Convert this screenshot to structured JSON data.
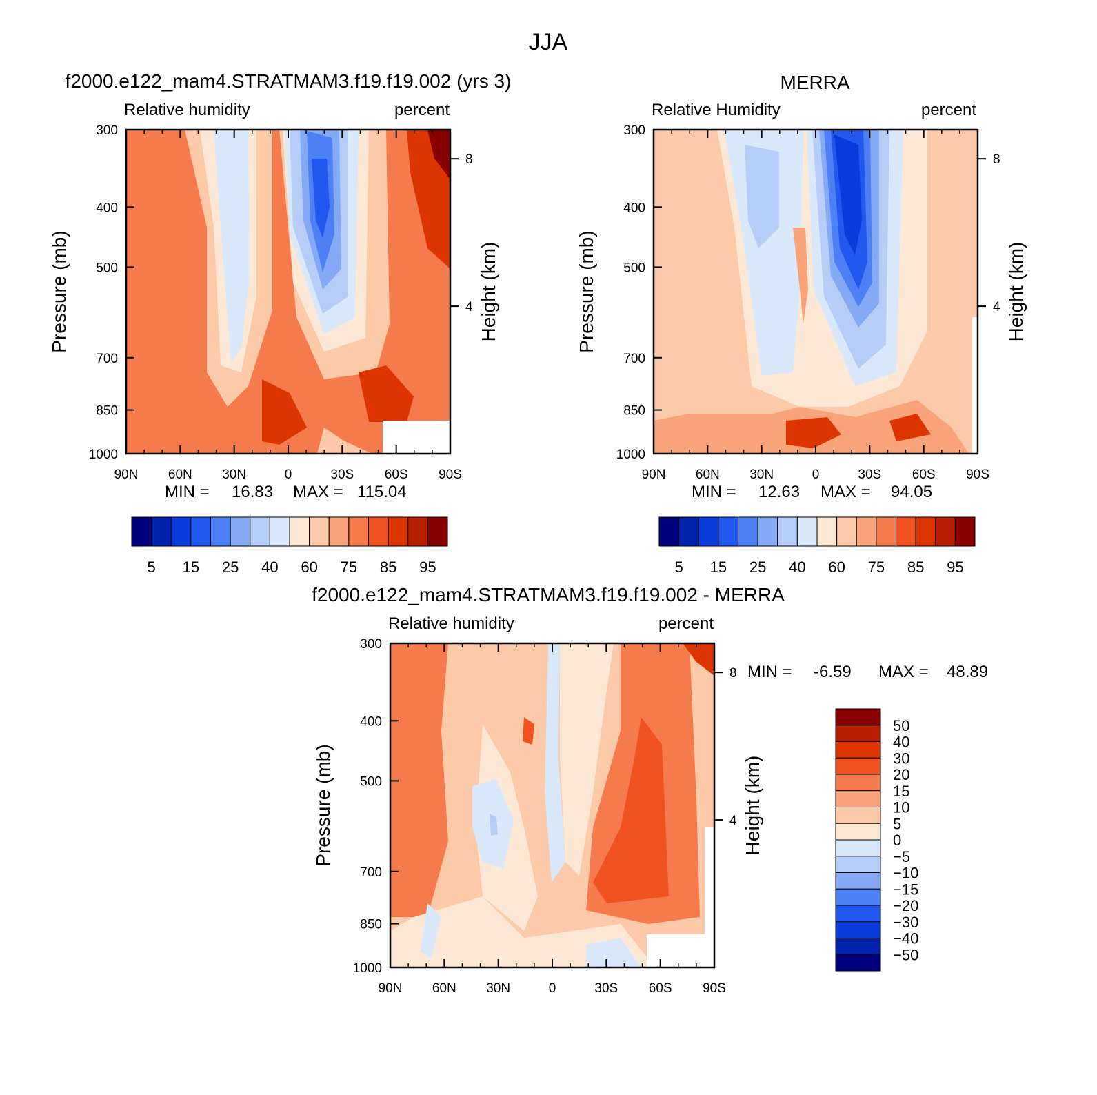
{
  "figure": {
    "title": "JJA"
  },
  "chart_data": [
    {
      "type": "heatmap",
      "title": "f2000.e122_mam4.STRATMAM3.f19.f19.002 (yrs 3)",
      "left_label": "Relative humidity",
      "right_label": "percent",
      "xlabel": "",
      "ylabel": "Pressure (mb)",
      "right_axis_label": "Height (km)",
      "x_ticks": [
        "90N",
        "60N",
        "30N",
        "0",
        "30S",
        "60S",
        "90S"
      ],
      "y_ticks": [
        "300",
        "400",
        "500",
        "700",
        "850",
        "1000"
      ],
      "right_ticks": [
        "8",
        "4"
      ],
      "stats": {
        "min_label": "MIN =",
        "min": "16.83",
        "max_label": "MAX =",
        "max": "115.04"
      },
      "colorbar_levels": [
        "5",
        "15",
        "25",
        "40",
        "60",
        "75",
        "85",
        "95"
      ]
    },
    {
      "type": "heatmap",
      "title": "MERRA",
      "left_label": "Relative Humidity",
      "right_label": "percent",
      "xlabel": "",
      "ylabel": "Pressure (mb)",
      "right_axis_label": "Height (km)",
      "x_ticks": [
        "90N",
        "60N",
        "30N",
        "0",
        "30S",
        "60S",
        "90S"
      ],
      "y_ticks": [
        "300",
        "400",
        "500",
        "700",
        "850",
        "1000"
      ],
      "right_ticks": [
        "8",
        "4"
      ],
      "stats": {
        "min_label": "MIN =",
        "min": "12.63",
        "max_label": "MAX =",
        "max": "94.05"
      },
      "colorbar_levels": [
        "5",
        "15",
        "25",
        "40",
        "60",
        "75",
        "85",
        "95"
      ]
    },
    {
      "type": "heatmap",
      "title": "f2000.e122_mam4.STRATMAM3.f19.f19.002 - MERRA",
      "left_label": "Relative humidity",
      "right_label": "percent",
      "xlabel": "",
      "ylabel": "Pressure (mb)",
      "right_axis_label": "Height (km)",
      "x_ticks": [
        "90N",
        "60N",
        "30N",
        "0",
        "30S",
        "60S",
        "90S"
      ],
      "y_ticks": [
        "300",
        "400",
        "500",
        "700",
        "850",
        "1000"
      ],
      "right_ticks": [
        "8",
        "4"
      ],
      "stats": {
        "min_label": "MIN =",
        "min": "-6.59",
        "max_label": "MAX =",
        "max": "48.89"
      },
      "colorbar_levels": [
        "50",
        "40",
        "30",
        "20",
        "15",
        "10",
        "5",
        "0",
        "-5",
        "-10",
        "-15",
        "-20",
        "-30",
        "-40",
        "-50"
      ]
    }
  ],
  "palette": {
    "abs": [
      "#00007f",
      "#0022aa",
      "#0a3cdd",
      "#2058f0",
      "#4d80f5",
      "#86a9f5",
      "#b6cdf8",
      "#d9e8fa",
      "#fde8d6",
      "#fcc9a9",
      "#f9a37a",
      "#f57b4d",
      "#f0531f",
      "#dc3500",
      "#b81e00",
      "#8a0000"
    ],
    "diff": [
      "#8a0000",
      "#b81e00",
      "#dc3500",
      "#f0531f",
      "#f57b4d",
      "#f9a37a",
      "#fcc9a9",
      "#fde8d6",
      "#d9e8fa",
      "#b6cdf8",
      "#86a9f5",
      "#4d80f5",
      "#2058f0",
      "#0a3cdd",
      "#0022aa",
      "#00007f"
    ]
  }
}
